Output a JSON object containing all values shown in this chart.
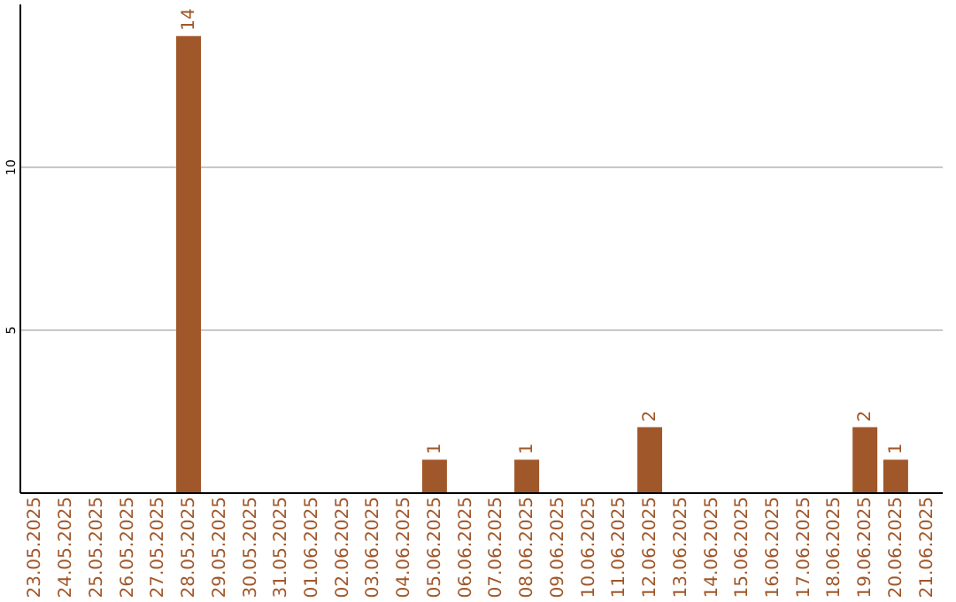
{
  "chart_data": {
    "type": "bar",
    "categories": [
      "23.05.2025",
      "24.05.2025",
      "25.05.2025",
      "26.05.2025",
      "27.05.2025",
      "28.05.2025",
      "29.05.2025",
      "30.05.2025",
      "31.05.2025",
      "01.06.2025",
      "02.06.2025",
      "03.06.2025",
      "04.06.2025",
      "05.06.2025",
      "06.06.2025",
      "07.06.2025",
      "08.06.2025",
      "09.06.2025",
      "10.06.2025",
      "11.06.2025",
      "12.06.2025",
      "13.06.2025",
      "14.06.2025",
      "15.06.2025",
      "16.06.2025",
      "17.06.2025",
      "18.06.2025",
      "19.06.2025",
      "20.06.2025",
      "21.06.2025"
    ],
    "values": [
      0,
      0,
      0,
      0,
      0,
      14,
      0,
      0,
      0,
      0,
      0,
      0,
      0,
      1,
      0,
      0,
      1,
      0,
      0,
      0,
      2,
      0,
      0,
      0,
      0,
      0,
      0,
      2,
      1,
      0
    ],
    "value_labels": [
      null,
      null,
      null,
      null,
      null,
      "14",
      null,
      null,
      null,
      null,
      null,
      null,
      null,
      "1",
      null,
      null,
      "1",
      null,
      null,
      null,
      "2",
      null,
      null,
      null,
      null,
      null,
      null,
      "2",
      "1",
      null
    ],
    "color": "#a0572a",
    "ylim": [
      0,
      15
    ],
    "yticks": [
      5,
      10
    ],
    "grid": "y"
  }
}
